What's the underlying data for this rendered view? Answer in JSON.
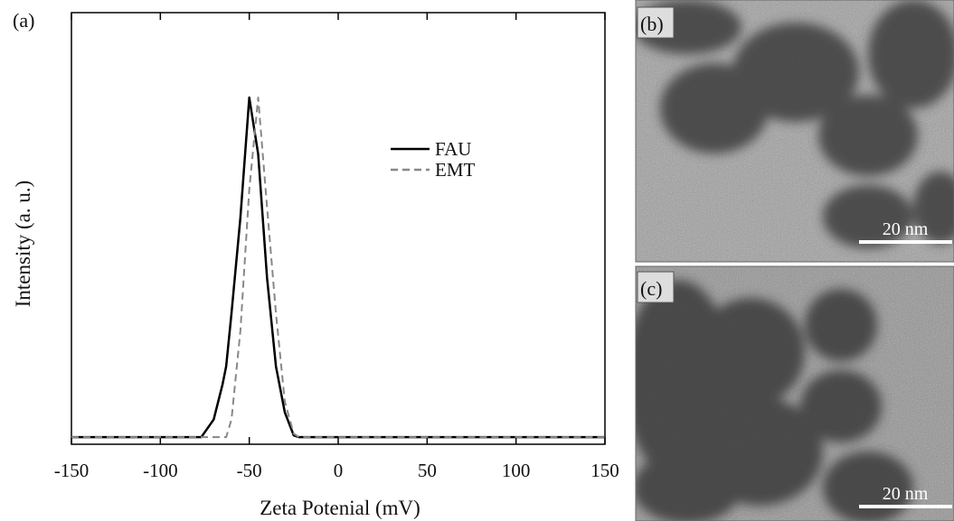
{
  "chart_data": {
    "type": "line",
    "panel_label": "(a)",
    "xlabel": "Zeta Potenial (mV)",
    "ylabel": "Intensity (a. u.)",
    "x": [
      -150,
      -77,
      -70,
      -65,
      -63,
      -60,
      -55,
      -50,
      -45,
      -40,
      -35,
      -30,
      -25,
      -22,
      150
    ],
    "series": [
      {
        "name": "FAU",
        "color": "#000000",
        "dash": "solid",
        "values": [
          0,
          0,
          0.05,
          0.15,
          0.2,
          0.35,
          0.62,
          0.96,
          0.8,
          0.45,
          0.2,
          0.07,
          0.005,
          0,
          0
        ]
      },
      {
        "name": "EMT",
        "color": "#888888",
        "dash": "dashed",
        "values": [
          0,
          0,
          0,
          0,
          0,
          0.05,
          0.3,
          0.7,
          0.96,
          0.65,
          0.35,
          0.1,
          0.01,
          0,
          0
        ]
      }
    ],
    "xlim": [
      -150,
      150
    ],
    "xticks": [
      -150,
      -100,
      -50,
      0,
      50,
      100,
      150
    ],
    "ylim": [
      -0.02,
      1.2
    ]
  },
  "images": [
    {
      "label": "(b)",
      "scale_bar": "20 nm"
    },
    {
      "label": "(c)",
      "scale_bar": "20 nm"
    }
  ]
}
